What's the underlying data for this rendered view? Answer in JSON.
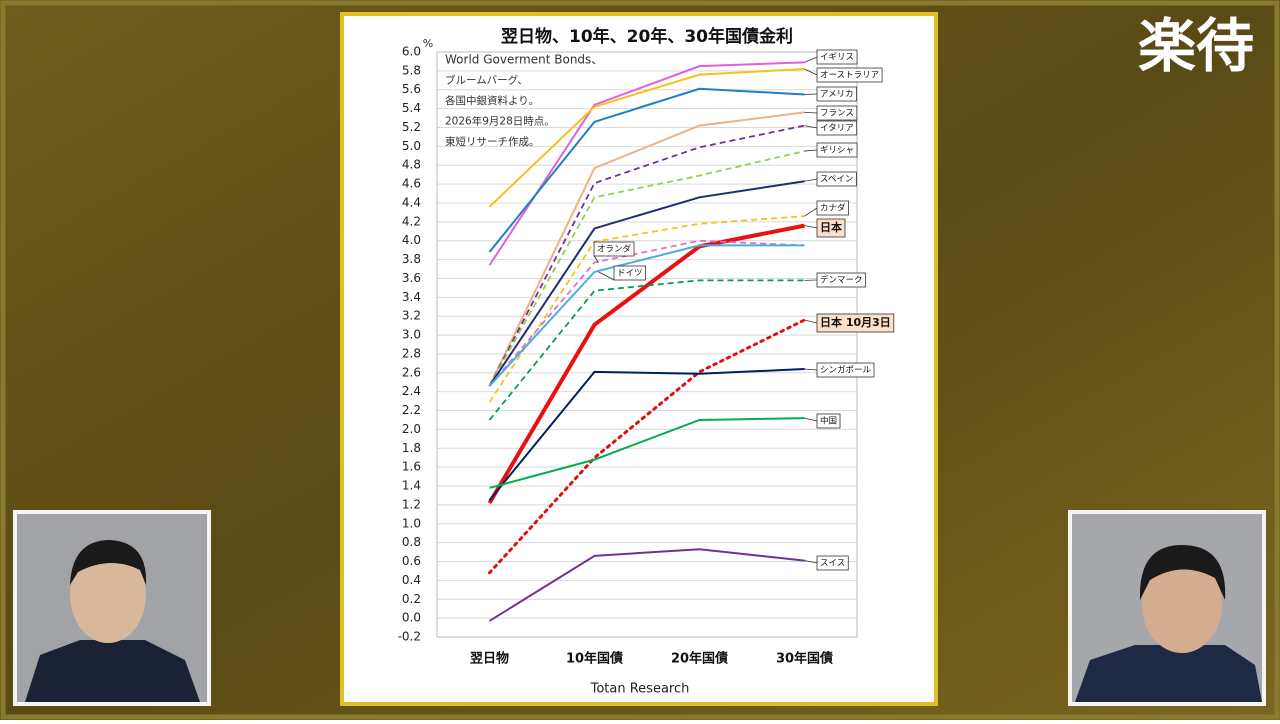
{
  "channel_logo": "楽待",
  "chart_data": {
    "type": "line",
    "title": "翌日物、10年、20年、30年国債金利",
    "y_unit": "%",
    "annotations": [
      "World Goverment Bonds、",
      "ブルームバーグ、",
      "各国中銀資料より。",
      "2026年9月28日時点。",
      "東短リサーチ作成。"
    ],
    "source": "Totan Research",
    "categories": [
      "翌日物",
      "10年国債",
      "20年国債",
      "30年国債"
    ],
    "ylim": [
      -0.2,
      6.0
    ],
    "yticks": [
      -0.2,
      {
        "value": 0,
        "label": "0.0"
      },
      0.2,
      0.4,
      0.6,
      0.8,
      {
        "value": 1,
        "label": "1.0"
      },
      1.2,
      1.4,
      1.6,
      1.8,
      {
        "value": 2,
        "label": "2.0"
      },
      2.2,
      2.4,
      2.6,
      2.8,
      {
        "value": 3,
        "label": "3.0"
      },
      3.2,
      3.4,
      3.6,
      3.8,
      {
        "value": 4,
        "label": "4.0"
      },
      4.2,
      4.4,
      4.6,
      4.8,
      {
        "value": 5,
        "label": "5.0"
      },
      5.2,
      5.4,
      5.6,
      5.8,
      {
        "value": 6,
        "label": "6.0"
      }
    ],
    "grid": true,
    "series": [
      {
        "name": "イギリス",
        "color": "#e35fdc",
        "line_style": "solid",
        "values": [
          3.74,
          5.44,
          5.85,
          5.89
        ]
      },
      {
        "name": "オーストラリア",
        "color": "#f5c21a",
        "line_style": "solid",
        "values": [
          4.36,
          5.42,
          5.76,
          5.82
        ]
      },
      {
        "name": "アメリカ",
        "color": "#1f7fc4",
        "line_style": "solid",
        "values": [
          3.88,
          5.26,
          5.61,
          5.55
        ]
      },
      {
        "name": "フランス",
        "color": "#f0b088",
        "line_style": "solid",
        "values": [
          2.46,
          4.77,
          5.22,
          5.36
        ]
      },
      {
        "name": "イタリア",
        "color": "#7030a0",
        "line_style": "dashed",
        "values": [
          2.46,
          4.61,
          4.99,
          5.22
        ]
      },
      {
        "name": "ギリシャ",
        "color": "#92d050",
        "line_style": "dashed",
        "values": [
          2.46,
          4.46,
          4.69,
          4.95
        ]
      },
      {
        "name": "スペイン",
        "color": "#1f2d6e",
        "line_style": "solid",
        "values": [
          2.46,
          4.13,
          4.46,
          4.63
        ]
      },
      {
        "name": "カナダ",
        "color": "#f5c21a",
        "line_style": "dashed",
        "values": [
          2.29,
          3.99,
          4.18,
          4.26
        ]
      },
      {
        "name": "日本",
        "color": "#e81010",
        "line_style": "bold",
        "values": [
          1.22,
          3.11,
          3.94,
          4.16
        ]
      },
      {
        "name": "オランダ",
        "color": "#e070d0",
        "line_style": "dashed",
        "values": [
          2.46,
          3.77,
          4.0,
          3.95
        ]
      },
      {
        "name": "ドイツ",
        "color": "#4aaee0",
        "line_style": "solid",
        "values": [
          2.46,
          3.67,
          3.95,
          3.95
        ]
      },
      {
        "name": "デンマーク",
        "color": "#00a050",
        "line_style": "dashed",
        "values": [
          2.1,
          3.47,
          3.58,
          3.58
        ]
      },
      {
        "name": "日本 10月3日",
        "color": "#e01010",
        "line_style": "dotted",
        "values": [
          0.48,
          1.7,
          2.61,
          3.16
        ]
      },
      {
        "name": "シンガポール",
        "color": "#002060",
        "line_style": "solid",
        "values": [
          1.25,
          2.61,
          2.59,
          2.64
        ]
      },
      {
        "name": "中国",
        "color": "#00b050",
        "line_style": "solid",
        "values": [
          1.38,
          1.68,
          2.1,
          2.12
        ]
      },
      {
        "name": "スイス",
        "color": "#7030a0",
        "line_style": "solid",
        "values": [
          -0.03,
          0.66,
          0.73,
          0.61
        ]
      }
    ]
  }
}
